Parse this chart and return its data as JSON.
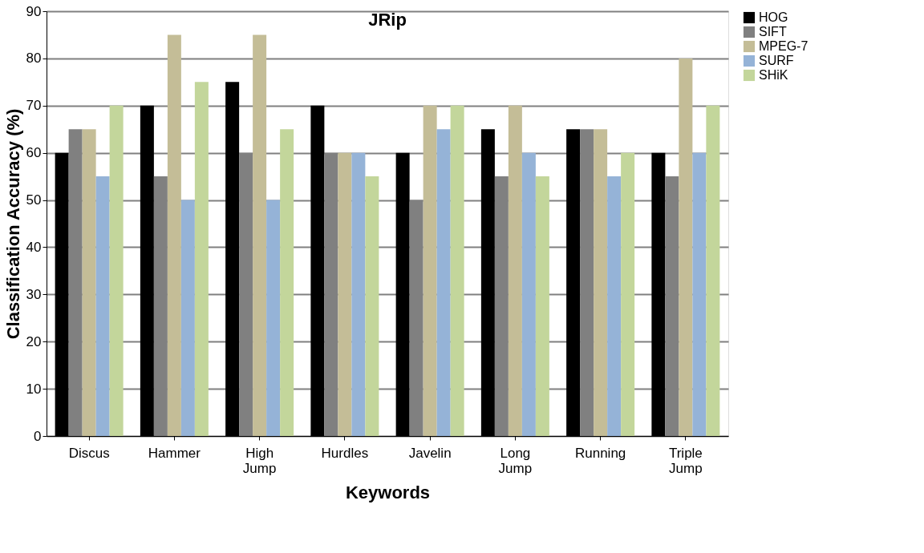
{
  "chart_data": {
    "type": "bar",
    "title": "JRip",
    "xlabel": "Keywords",
    "ylabel": "Classification Accuracy (%)",
    "categories": [
      "Discus",
      "Hammer",
      "High Jump",
      "Hurdles",
      "Javelin",
      "Long Jump",
      "Running",
      "Triple Jump"
    ],
    "series": [
      {
        "name": "HOG",
        "color": "#000000",
        "values": [
          60,
          70,
          75,
          70,
          60,
          65,
          65,
          60
        ]
      },
      {
        "name": "SIFT",
        "color": "#808080",
        "values": [
          65,
          55,
          60,
          60,
          50,
          55,
          65,
          55
        ]
      },
      {
        "name": "MPEG-7",
        "color": "#c4bd97",
        "values": [
          65,
          85,
          85,
          60,
          70,
          70,
          65,
          80
        ]
      },
      {
        "name": "SURF",
        "color": "#95b3d7",
        "values": [
          55,
          50,
          50,
          60,
          65,
          60,
          55,
          60
        ]
      },
      {
        "name": "SHiK",
        "color": "#c3d69b",
        "values": [
          70,
          75,
          65,
          55,
          70,
          55,
          60,
          70
        ]
      }
    ],
    "ylim": [
      0,
      90
    ],
    "yticks": [
      0,
      10,
      20,
      30,
      40,
      50,
      60,
      70,
      80,
      90
    ],
    "grid": "y",
    "legend": "right"
  }
}
